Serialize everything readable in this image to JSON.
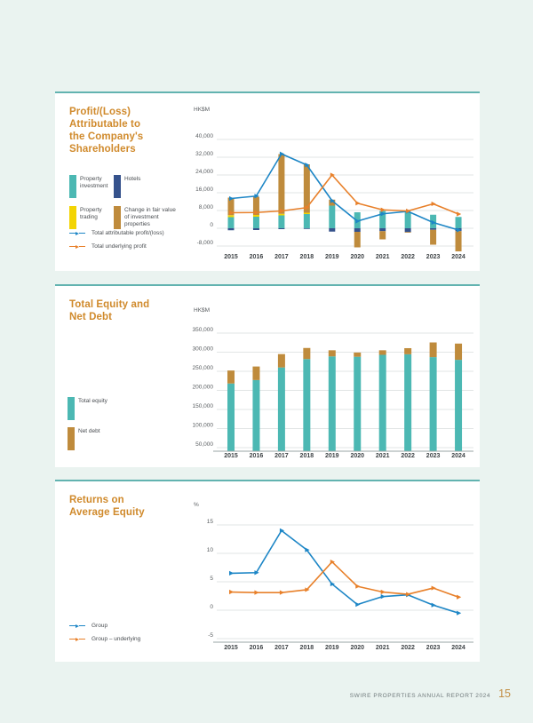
{
  "page": {
    "footer_text": "SWIRE PROPERTIES ANNUAL REPORT 2024",
    "page_number": "15"
  },
  "colors": {
    "background": "#eaf3f0",
    "card": "#ffffff",
    "card_border": "#62b3b0",
    "title": "#d08a2c",
    "teal": "#4cb8b3",
    "navy": "#35528c",
    "yellow": "#f3d403",
    "tan": "#bf8b3c",
    "blue": "#1d86c6",
    "orange": "#e8802a",
    "grid": "#d9dddd",
    "axis": "#9aa5a5",
    "tick_text": "#595d60",
    "year_text": "#3e4346",
    "legend_text": "#4a4e52",
    "footer_text": "#707a7c",
    "page_number": "#c28f45"
  },
  "chart_data": [
    {
      "type": "bar+line",
      "title_lines": [
        "Profit/(Loss)",
        "Attributable to",
        "the Company's",
        "Shareholders"
      ],
      "unit": "HK$M",
      "categories": [
        "2015",
        "2016",
        "2017",
        "2018",
        "2019",
        "2020",
        "2021",
        "2022",
        "2023",
        "2024"
      ],
      "yticks": [
        40000,
        32000,
        24000,
        16000,
        8000,
        0,
        -8000
      ],
      "ytick_labels": [
        "40,000",
        "32,000",
        "24,000",
        "16,000",
        "8,000",
        "0",
        "-8,000"
      ],
      "ylim": [
        -12000,
        40000
      ],
      "grid": true,
      "bar_series": [
        {
          "name": "Property investment",
          "color": "teal",
          "stack": 0,
          "values": [
            5000,
            5200,
            5800,
            6400,
            10200,
            7200,
            7800,
            7200,
            6100,
            5100
          ]
        },
        {
          "name": "Hotels",
          "color": "navy",
          "stack": 2,
          "values": [
            -900,
            -800,
            -400,
            -300,
            -1500,
            -1600,
            -1300,
            -1700,
            -700,
            -1300
          ]
        },
        {
          "name": "Property trading",
          "color": "yellow",
          "stack": 1,
          "values": [
            900,
            800,
            700,
            600,
            0,
            0,
            0,
            0,
            0,
            0
          ]
        },
        {
          "name": "Change in fair value of investment properties",
          "color": "tan",
          "stack": 3,
          "values": [
            7900,
            8200,
            26900,
            21800,
            2700,
            -7000,
            -3700,
            -300,
            -6700,
            -9100
          ]
        }
      ],
      "line_series": [
        {
          "name": "Total attributable profit/(loss)",
          "color": "blue",
          "values": [
            13400,
            14500,
            33500,
            28500,
            12400,
            3200,
            6500,
            7600,
            2600,
            -800
          ]
        },
        {
          "name": "Total underlying profit",
          "color": "orange",
          "values": [
            7000,
            7100,
            7800,
            9300,
            24000,
            11300,
            8300,
            7800,
            11000,
            6400
          ]
        }
      ]
    },
    {
      "type": "stacked-bar",
      "title_lines": [
        "Total Equity and",
        "Net Debt"
      ],
      "unit": "HK$M",
      "categories": [
        "2015",
        "2016",
        "2017",
        "2018",
        "2019",
        "2020",
        "2021",
        "2022",
        "2023",
        "2024"
      ],
      "yticks": [
        350000,
        300000,
        250000,
        200000,
        150000,
        100000,
        50000
      ],
      "ytick_labels": [
        "350,000",
        "300,000",
        "250,000",
        "200,000",
        "150,000",
        "100,000",
        "50,000"
      ],
      "ylim": [
        40000,
        355000
      ],
      "grid": true,
      "bar_series": [
        {
          "name": "Total equity",
          "color": "teal",
          "stack": 0,
          "values": [
            218000,
            227000,
            260000,
            282000,
            289000,
            288000,
            293000,
            294500,
            287000,
            280000
          ]
        },
        {
          "name": "Net debt",
          "color": "tan",
          "stack": 1,
          "values": [
            34000,
            35500,
            35000,
            29000,
            16000,
            11000,
            12000,
            16000,
            38500,
            42500
          ]
        }
      ],
      "line_series": []
    },
    {
      "type": "line",
      "title_lines": [
        "Returns on",
        "Average Equity"
      ],
      "unit": "%",
      "categories": [
        "2015",
        "2016",
        "2017",
        "2018",
        "2019",
        "2020",
        "2021",
        "2022",
        "2023",
        "2024"
      ],
      "yticks": [
        15,
        10,
        5,
        0,
        -5
      ],
      "ytick_labels": [
        "15",
        "10",
        "5",
        "0",
        "-5"
      ],
      "ylim": [
        -5,
        15
      ],
      "grid": true,
      "bar_series": [],
      "line_series": [
        {
          "name": "Group",
          "color": "blue",
          "values": [
            6.5,
            6.6,
            14.0,
            10.6,
            4.6,
            1.0,
            2.4,
            2.7,
            0.9,
            -0.5
          ]
        },
        {
          "name": "Group – underlying",
          "color": "orange",
          "values": [
            3.2,
            3.1,
            3.1,
            3.6,
            8.5,
            4.2,
            3.2,
            2.8,
            3.9,
            2.3
          ]
        }
      ]
    }
  ]
}
